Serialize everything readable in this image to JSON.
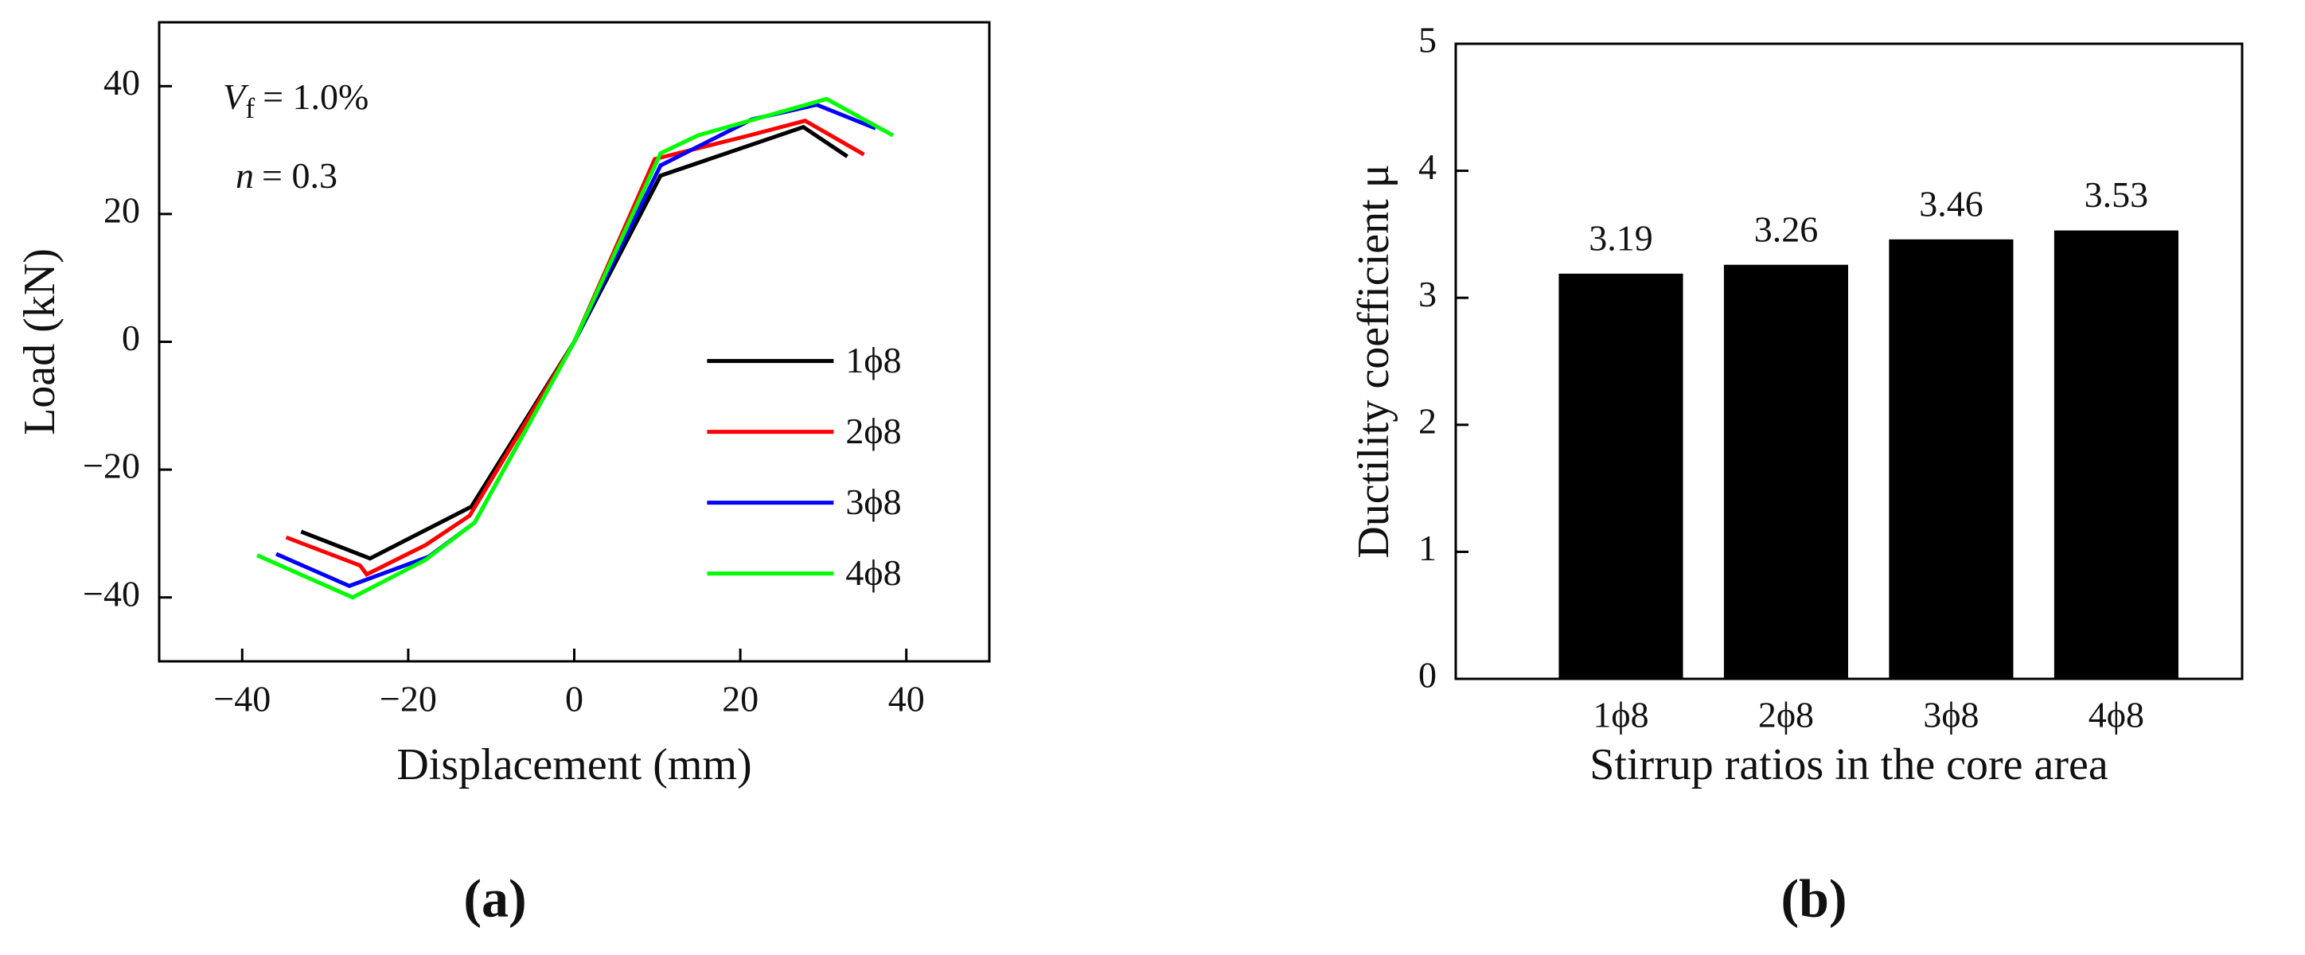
{
  "chart_data": [
    {
      "type": "line",
      "panel_label": "(a)",
      "x_label": "Displacement (mm)",
      "y_label": "Load (kN)",
      "annotations": [
        {
          "symbol": "V",
          "subscript": "f",
          "text": "= 1.0%"
        },
        {
          "symbol": "n",
          "text": "= 0.3"
        }
      ],
      "xlim": [
        -50,
        50
      ],
      "ylim": [
        -50,
        50
      ],
      "xticks": [
        {
          "value": -40,
          "label": "−40"
        },
        {
          "value": -20,
          "label": "−20"
        },
        0,
        20,
        40
      ],
      "yticks": [
        {
          "value": -40,
          "label": "−40"
        },
        {
          "value": -20,
          "label": "−20"
        },
        0,
        20,
        40
      ],
      "grid": false,
      "legend": "lower right",
      "series": [
        {
          "name": "1ϕ8",
          "color": "#000000",
          "x": [
            -32.9,
            -24.6,
            -12.4,
            0,
            10.4,
            27.6,
            32.9
          ],
          "values": [
            -29.7,
            -33.9,
            -25.8,
            0,
            26,
            33.6,
            29
          ]
        },
        {
          "name": "2ϕ8",
          "color": "#ff0000",
          "x": [
            -34.7,
            -25.8,
            -25,
            -17.9,
            -12.6,
            0,
            9.7,
            21.1,
            27.8,
            34.9
          ],
          "values": [
            -30.6,
            -35,
            -36.4,
            -31.8,
            -27.2,
            0,
            28.6,
            32.3,
            34.6,
            29.3
          ]
        },
        {
          "name": "3ϕ8",
          "color": "#0000ff",
          "x": [
            -35.9,
            -27.1,
            -17.5,
            -12,
            0,
            10.4,
            21.4,
            29.2,
            36.3
          ],
          "values": [
            -33.2,
            -38.2,
            -33.6,
            -28.3,
            0,
            27.6,
            34.8,
            37.1,
            33.4
          ]
        },
        {
          "name": "4ϕ8",
          "color": "#00ff00",
          "x": [
            -38.2,
            -26.7,
            -17.9,
            -12,
            0,
            10.4,
            14.9,
            30.4,
            38.4
          ],
          "values": [
            -33.4,
            -40,
            -34.1,
            -28.3,
            0,
            29.5,
            32.3,
            38,
            32.3
          ]
        }
      ]
    },
    {
      "type": "bar",
      "panel_label": "(b)",
      "x_label": "Stirrup ratios in the core area",
      "y_label": "Ductility coefficient μ",
      "categories": [
        "1ϕ8",
        "2ϕ8",
        "3ϕ8",
        "4ϕ8"
      ],
      "values": [
        3.19,
        3.26,
        3.46,
        3.53
      ],
      "color": "#000000",
      "ylim": [
        0,
        5
      ],
      "yticks": [
        0,
        1,
        2,
        3,
        4,
        5
      ],
      "grid": false
    }
  ]
}
